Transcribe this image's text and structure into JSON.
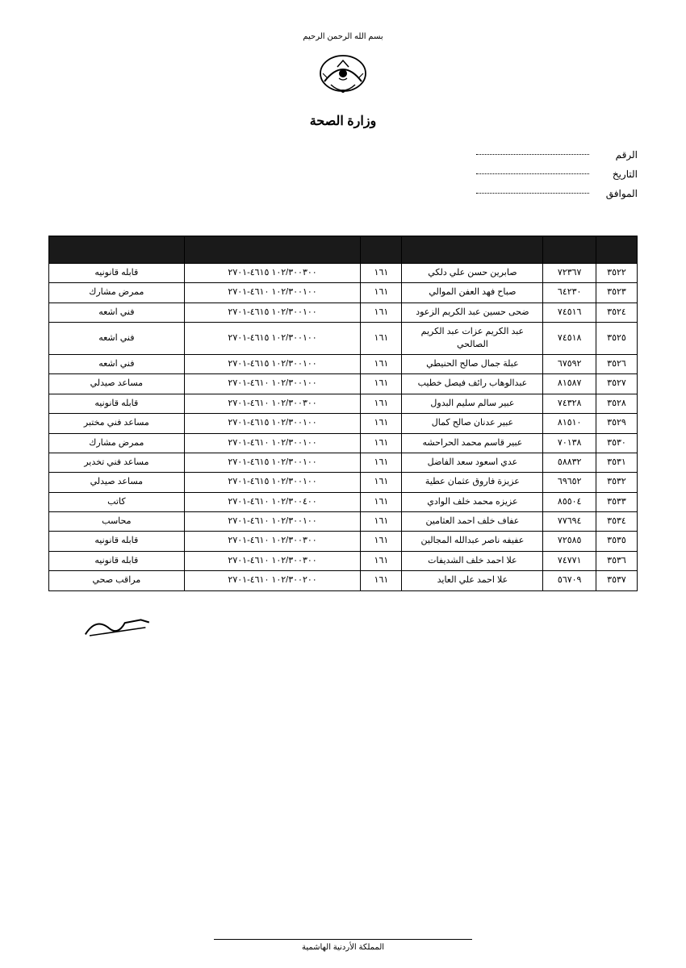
{
  "header": {
    "ornament_text": "بسم الله الرحمن الرحيم",
    "ministry": "وزارة الصحة"
  },
  "meta": {
    "number_label": "الرقم",
    "date_label": "التاريخ",
    "approval_label": "الموافق"
  },
  "table": {
    "columns": [
      "",
      "",
      "",
      "",
      "",
      ""
    ],
    "col_widths_pct": [
      7,
      9,
      24,
      7,
      30,
      23
    ],
    "header_bg": "#1a1a1a",
    "border_color": "#000000",
    "font_size_pt": 11,
    "rows": [
      {
        "seq": "٣٥٢٢",
        "id": "٧٢٣٦٧",
        "name": "صابرين حسن علي دلكي",
        "dept": "١٦١",
        "code": "١٠٢/٣٠٠٣٠٠ ٤٦١٥-٢٧٠١",
        "job": "قابله قانونيه"
      },
      {
        "seq": "٣٥٢٣",
        "id": "٦٤٢٣٠",
        "name": "صباح فهد العفن الموالي",
        "dept": "١٦١",
        "code": "١٠٢/٣٠٠١٠٠ ٤٦١٠-٢٧٠١",
        "job": "ممرض مشارك"
      },
      {
        "seq": "٣٥٢٤",
        "id": "٧٤٥١٦",
        "name": "ضحى حسين عبد الكريم الزعود",
        "dept": "١٦١",
        "code": "١٠٢/٣٠٠١٠٠ ٤٦١٥-٢٧٠١",
        "job": "فني اشعه"
      },
      {
        "seq": "٣٥٢٥",
        "id": "٧٤٥١٨",
        "name": "عبد الكريم عزات عبد الكريم الصالحي",
        "dept": "١٦١",
        "code": "١٠٢/٣٠٠١٠٠ ٤٦١٥-٢٧٠١",
        "job": "فني اشعه"
      },
      {
        "seq": "٣٥٢٦",
        "id": "٦٧٥٩٢",
        "name": "عبلة جمال صالح الحنيطي",
        "dept": "١٦١",
        "code": "١٠٢/٣٠٠١٠٠ ٤٦١٥-٢٧٠١",
        "job": "فني اشعه"
      },
      {
        "seq": "٣٥٢٧",
        "id": "٨١٥٨٧",
        "name": "عبدالوهاب رائف فيصل خطيب",
        "dept": "١٦١",
        "code": "١٠٢/٣٠٠١٠٠ ٤٦١٠-٢٧٠١",
        "job": "مساعد صيدلي"
      },
      {
        "seq": "٣٥٢٨",
        "id": "٧٤٣٢٨",
        "name": "عبير سالم سليم البدول",
        "dept": "١٦١",
        "code": "١٠٢/٣٠٠٣٠٠ ٤٦١٠-٢٧٠١",
        "job": "قابله قانونيه"
      },
      {
        "seq": "٣٥٢٩",
        "id": "٨١٥١٠",
        "name": "عبير عدنان صالح كمال",
        "dept": "١٦١",
        "code": "١٠٢/٣٠٠١٠٠ ٤٦١٥-٢٧٠١",
        "job": "مساعد فني مختبر"
      },
      {
        "seq": "٣٥٣٠",
        "id": "٧٠١٣٨",
        "name": "عبير قاسم محمد الحراحشه",
        "dept": "١٦١",
        "code": "١٠٢/٣٠٠١٠٠ ٤٦١٠-٢٧٠١",
        "job": "ممرض مشارك"
      },
      {
        "seq": "٣٥٣١",
        "id": "٥٨٨٣٢",
        "name": "عدي اسعود سعد الفاضل",
        "dept": "١٦١",
        "code": "١٠٢/٣٠٠١٠٠ ٤٦١٥-٢٧٠١",
        "job": "مساعد فني تخدير"
      },
      {
        "seq": "٣٥٣٢",
        "id": "٦٩٦٥٢",
        "name": "عزيزة فاروق عثمان عطية",
        "dept": "١٦١",
        "code": "١٠٢/٣٠٠١٠٠ ٤٦١٥-٢٧٠١",
        "job": "مساعد صيدلي"
      },
      {
        "seq": "٣٥٣٣",
        "id": "٨٥٥٠٤",
        "name": "عزيزه محمد خلف الوادي",
        "dept": "١٦١",
        "code": "١٠٢/٣٠٠٤٠٠ ٤٦١٠-٢٧٠١",
        "job": "كاتب"
      },
      {
        "seq": "٣٥٣٤",
        "id": "٧٧٦٩٤",
        "name": "عفاف خلف احمد العثامين",
        "dept": "١٦١",
        "code": "١٠٢/٣٠٠١٠٠ ٤٦١٠-٢٧٠١",
        "job": "محاسب"
      },
      {
        "seq": "٣٥٣٥",
        "id": "٧٢٥٨٥",
        "name": "عفيفه ناصر عبدالله المجالين",
        "dept": "١٦١",
        "code": "١٠٢/٣٠٠٣٠٠ ٤٦١٠-٢٧٠١",
        "job": "قابله قانونيه"
      },
      {
        "seq": "٣٥٣٦",
        "id": "٧٤٧٧١",
        "name": "علا احمد خلف الشديفات",
        "dept": "١٦١",
        "code": "١٠٢/٣٠٠٣٠٠ ٤٦١٠-٢٧٠١",
        "job": "قابله قانونيه"
      },
      {
        "seq": "٣٥٣٧",
        "id": "٥٦٧٠٩",
        "name": "علا احمد علي العايد",
        "dept": "١٦١",
        "code": "١٠٢/٣٠٠٢٠٠ ٤٦١٠-٢٧٠١",
        "job": "مراقب صحي"
      }
    ]
  },
  "footer": {
    "text": "المملكة الأردنية الهاشمية"
  },
  "colors": {
    "background": "#ffffff",
    "text": "#000000",
    "header_bg": "#1a1a1a",
    "border": "#000000"
  }
}
